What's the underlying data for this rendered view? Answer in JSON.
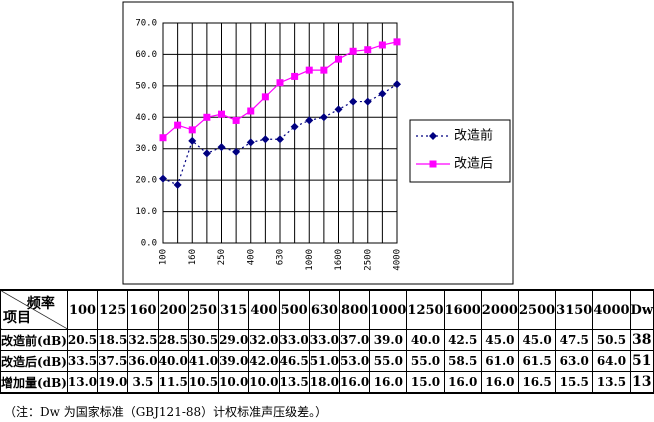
{
  "chart_data": {
    "type": "line",
    "categories": [
      "100",
      null,
      "160",
      null,
      "250",
      null,
      "400",
      null,
      "630",
      null,
      "1000",
      null,
      "1600",
      null,
      "2500",
      null,
      "4000"
    ],
    "series": [
      {
        "name": "改造前",
        "color": "#000080",
        "marker": "diamond",
        "dash": "dotted",
        "values": [
          20.5,
          18.5,
          32.5,
          28.5,
          30.5,
          29.0,
          32.0,
          33.0,
          33.0,
          37.0,
          39.0,
          40.0,
          42.5,
          45.0,
          45.0,
          47.5,
          50.5
        ]
      },
      {
        "name": "改造后",
        "color": "#ff00ff",
        "marker": "square",
        "dash": "solid",
        "values": [
          33.5,
          37.5,
          36.0,
          40.0,
          41.0,
          39.0,
          42.0,
          46.5,
          51.0,
          53.0,
          55.0,
          55.0,
          58.5,
          61.0,
          61.5,
          63.0,
          64.0
        ]
      }
    ],
    "ylim": [
      0,
      70
    ],
    "yticks": [
      {
        "value": 0,
        "label": "0.0"
      },
      {
        "value": 10,
        "label": "10.0"
      },
      {
        "value": 20,
        "label": "20.0"
      },
      {
        "value": 30,
        "label": "30.0"
      },
      {
        "value": 40,
        "label": "40.0"
      },
      {
        "value": 50,
        "label": "50.0"
      },
      {
        "value": 60,
        "label": "60.0"
      },
      {
        "value": 70,
        "label": "70.0"
      }
    ],
    "grid": true,
    "legend": "right"
  },
  "table": {
    "header": {
      "top": "频率",
      "bottom": "项目",
      "columns": [
        100,
        125,
        160,
        200,
        250,
        315,
        400,
        500,
        630,
        800,
        1000,
        1250,
        1600,
        2000,
        2500,
        3150,
        4000,
        "Dw"
      ]
    },
    "rows": [
      {
        "label": "改造前(dB)",
        "cells": [
          "20.5",
          "18.5",
          "32.5",
          "28.5",
          "30.5",
          "29.0",
          "32.0",
          "33.0",
          "33.0",
          "37.0",
          "39.0",
          "40.0",
          "42.5",
          "45.0",
          "45.0",
          "47.5",
          "50.5",
          38
        ]
      },
      {
        "label": "改造后(dB)",
        "cells": [
          "33.5",
          "37.5",
          "36.0",
          "40.0",
          "41.0",
          "39.0",
          "42.0",
          "46.5",
          "51.0",
          "53.0",
          "55.0",
          "55.0",
          "58.5",
          "61.0",
          "61.5",
          "63.0",
          "64.0",
          51
        ]
      },
      {
        "label": "增加量(dB)",
        "cells": [
          "13.0",
          "19.0",
          "3.5",
          "11.5",
          "10.5",
          "10.0",
          "10.0",
          "13.5",
          "18.0",
          "16.0",
          "16.0",
          "15.0",
          "16.0",
          "16.0",
          "16.5",
          "15.5",
          "13.5",
          13
        ]
      }
    ]
  },
  "note": "（注：Dw 为国家标准（GBJ121-88）计权标准声压级差。）"
}
